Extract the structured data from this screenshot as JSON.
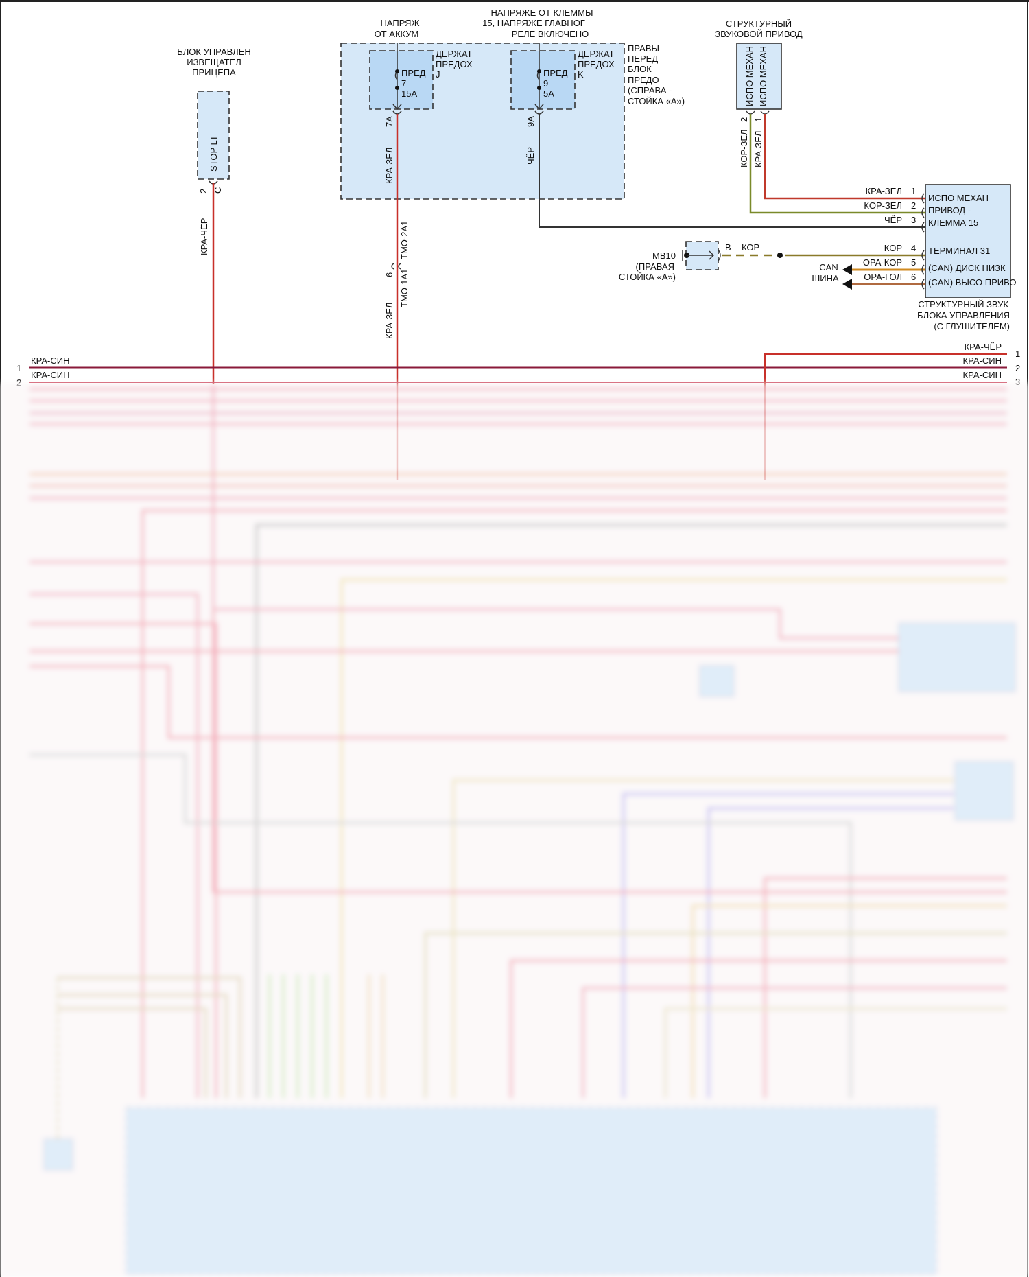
{
  "colors": {
    "red": "#c8302a",
    "red_green": "#c0392b",
    "brown_green": "#7a8a2a",
    "black": "#333333",
    "brown": "#8a7a2a",
    "orange_brown": "#d08a20",
    "orange_blue": "#c07030",
    "bus_red_blue": "#8a1a3a",
    "fill_blue": "#d6e8f8"
  },
  "trailer_module": {
    "title": [
      "БЛОК УПРАВЛЕН",
      "ИЗВЕЩАТЕЛ",
      "ПРИЦЕПА"
    ],
    "pin_name": "STOP LT",
    "pin_num": "2",
    "connector": "C",
    "wire": "КРА-ЧЁР"
  },
  "battery_supply": {
    "label": [
      "НАПРЯЖ",
      "ОТ АККУМ"
    ]
  },
  "k15_supply": {
    "label": [
      "НАПРЯЖЕ ОТ КЛЕММЫ",
      "15, НАПРЯЖЕ ГЛАВНОГ",
      "РЕЛЕ ВКЛЮЧЕНО"
    ]
  },
  "fuse_box": {
    "label": [
      "ПРАВЫ",
      "ПЕРЕД",
      "БЛОК",
      "ПРЕДО",
      "(СПРАВА -",
      "СТОЙКА «А»)"
    ]
  },
  "fuse_j": {
    "holder": [
      "ДЕРЖАТ",
      "ПРЕДОХ",
      "J"
    ],
    "fuse": [
      "ПРЕД",
      "7",
      "15A"
    ],
    "pin": "7A",
    "wire": "КРА-ЗЕЛ"
  },
  "fuse_k": {
    "holder": [
      "ДЕРЖАТ",
      "ПРЕДОХ",
      "K"
    ],
    "fuse": [
      "ПРЕД",
      "9",
      "5A"
    ],
    "pin": "9A",
    "wire": "ЧЁР"
  },
  "connector_tmo": {
    "pin": "6",
    "upper": "TMO-2A1",
    "lower": "TMO-1A1",
    "wire": "КРА-ЗЕЛ"
  },
  "sound_actuator": {
    "title": [
      "СТРУКТУРНЫЙ",
      "ЗВУКОВОЙ ПРИВОД"
    ],
    "pins": [
      {
        "num": "2",
        "name": "ИСПО МЕХАН",
        "wire": "КОР-ЗЕЛ"
      },
      {
        "num": "1",
        "name": "ИСПО МЕХАН",
        "wire": "КРА-ЗЕЛ"
      }
    ]
  },
  "sound_module": {
    "title": [
      "СТРУКТУРНЫЙ ЗВУК",
      "БЛОКА УПРАВЛЕНИЯ",
      "(С ГЛУШИТЕЛЕМ)"
    ],
    "pins": [
      {
        "num": "1",
        "wire": "КРА-ЗЕЛ"
      },
      {
        "num": "2",
        "wire": "КОР-ЗЕЛ"
      },
      {
        "num": "3",
        "wire": "ЧЁР"
      },
      {
        "num": "4",
        "wire": "КОР"
      },
      {
        "num": "5",
        "wire": "ОРА-КОР"
      },
      {
        "num": "6",
        "wire": "ОРА-ГОЛ"
      }
    ],
    "labels": [
      "ИСПО МЕХАН",
      "ПРИВОД -",
      "КЛЕММА 15",
      "ТЕРМИНАЛ 31",
      "(CAN) ДИСК НИЗК",
      "(CAN) ВЫСО ПРИВО"
    ]
  },
  "ground": {
    "name": "MB10",
    "location": [
      "(ПРАВАЯ",
      "СТОЙКА «А»)"
    ],
    "pin": "B",
    "wire": "КОР"
  },
  "can_bus": {
    "label": [
      "CAN",
      "ШИНА"
    ]
  },
  "bus_left": [
    {
      "num": "1",
      "wire": "КРА-СИН"
    },
    {
      "num": "2",
      "wire": "КРА-СИН"
    }
  ],
  "bus_right": [
    {
      "num": "1",
      "wire": "КРА-ЧЁР"
    },
    {
      "num": "2",
      "wire": "КРА-СИН"
    },
    {
      "num": "3",
      "wire": "КРА-СИН"
    }
  ]
}
